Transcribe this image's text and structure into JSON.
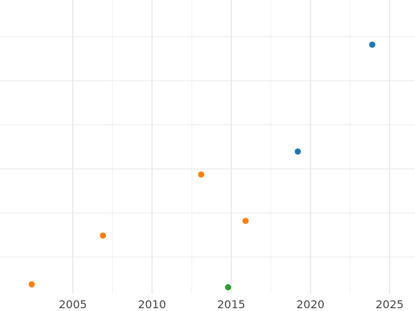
{
  "chart_data": {
    "type": "scatter",
    "title": "",
    "xlabel": "",
    "ylabel": "",
    "xlim": [
      2000.4,
      2026.6
    ],
    "ylim": [
      0,
      1
    ],
    "x_ticks": [
      2005,
      2010,
      2015,
      2020,
      2025
    ],
    "x_tick_labels": [
      "2005",
      "2010",
      "2015",
      "2020",
      "2025"
    ],
    "x_minor_ticks": [
      2007.5,
      2012.5,
      2017.5,
      2022.5
    ],
    "y_gridlines": [
      0.125,
      0.275,
      0.425,
      0.575,
      0.725,
      0.875
    ],
    "y_ticks_labeled": false,
    "grid": true,
    "legend": "none",
    "series": [
      {
        "color": "#1f77b4",
        "points": [
          {
            "x": 2023.9,
            "y": 0.848
          },
          {
            "x": 2019.2,
            "y": 0.484
          }
        ]
      },
      {
        "color": "#ff7f0e",
        "points": [
          {
            "x": 2013.1,
            "y": 0.406
          },
          {
            "x": 2015.9,
            "y": 0.248
          },
          {
            "x": 2006.9,
            "y": 0.198
          },
          {
            "x": 2002.4,
            "y": 0.032
          }
        ]
      },
      {
        "color": "#2ca02c",
        "points": [
          {
            "x": 2014.8,
            "y": 0.022
          }
        ]
      }
    ]
  }
}
